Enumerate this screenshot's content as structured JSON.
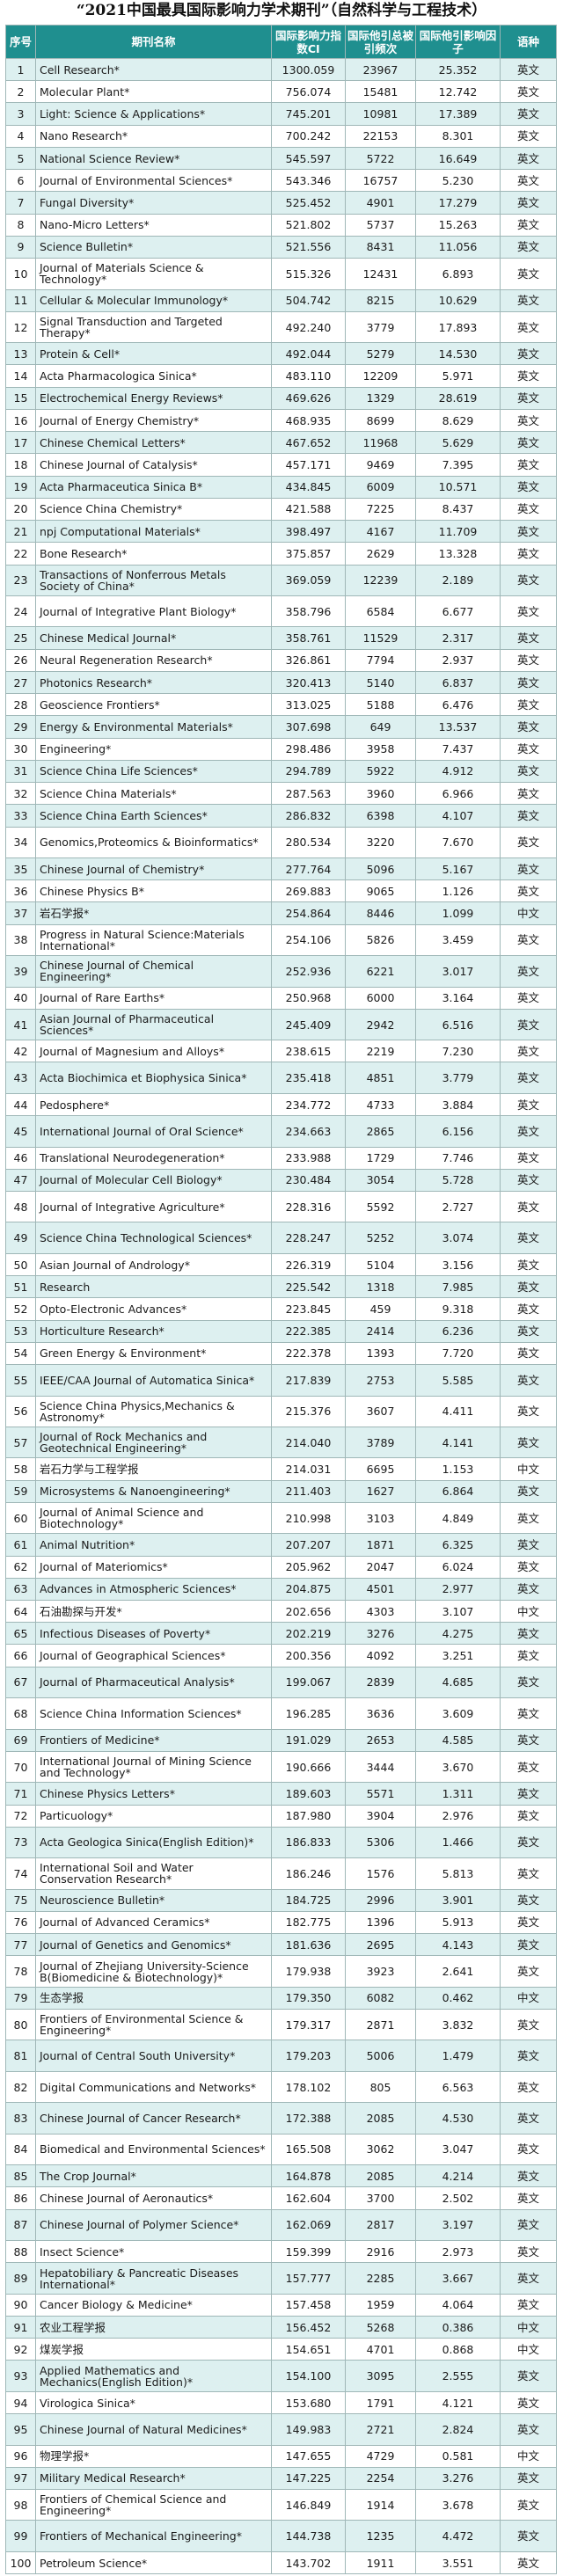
{
  "title": "“2021中国最具国际影响力学术期刊”（自然科学与工程技术）",
  "headers": [
    "序号",
    "期刊名称",
    "国际影响力指数CI",
    "国际他引总被引频次",
    "国际他引影响因子",
    "语种"
  ],
  "rows": [
    [
      "1",
      "Cell Research*",
      "1300.059",
      "23967",
      "25.352",
      "英文"
    ],
    [
      "2",
      "Molecular Plant*",
      "756.074",
      "15481",
      "12.742",
      "英文"
    ],
    [
      "3",
      "Light: Science & Applications*",
      "745.201",
      "10981",
      "17.389",
      "英文"
    ],
    [
      "4",
      "Nano Research*",
      "700.242",
      "22153",
      "8.301",
      "英文"
    ],
    [
      "5",
      "National Science Review*",
      "545.597",
      "5722",
      "16.649",
      "英文"
    ],
    [
      "6",
      "Journal of Environmental Sciences*",
      "543.346",
      "16757",
      "5.230",
      "英文"
    ],
    [
      "7",
      "Fungal Diversity*",
      "525.452",
      "4901",
      "17.279",
      "英文"
    ],
    [
      "8",
      "Nano-Micro Letters*",
      "521.802",
      "5737",
      "15.263",
      "英文"
    ],
    [
      "9",
      "Science Bulletin*",
      "521.556",
      "8431",
      "11.056",
      "英文"
    ],
    [
      "10",
      "Journal of Materials Science & Technology*",
      "515.326",
      "12431",
      "6.893",
      "英文"
    ],
    [
      "11",
      "Cellular & Molecular Immunology*",
      "504.742",
      "8215",
      "10.629",
      "英文"
    ],
    [
      "12",
      "Signal Transduction and Targeted Therapy*",
      "492.240",
      "3779",
      "17.893",
      "英文"
    ],
    [
      "13",
      "Protein & Cell*",
      "492.044",
      "5279",
      "14.530",
      "英文"
    ],
    [
      "14",
      "Acta Pharmacologica Sinica*",
      "483.110",
      "12209",
      "5.971",
      "英文"
    ],
    [
      "15",
      "Electrochemical Energy Reviews*",
      "469.626",
      "1329",
      "28.619",
      "英文"
    ],
    [
      "16",
      "Journal of Energy Chemistry*",
      "468.935",
      "8699",
      "8.629",
      "英文"
    ],
    [
      "17",
      "Chinese Chemical Letters*",
      "467.652",
      "11968",
      "5.629",
      "英文"
    ],
    [
      "18",
      "Chinese Journal of Catalysis*",
      "457.171",
      "9469",
      "7.395",
      "英文"
    ],
    [
      "19",
      "Acta Pharmaceutica Sinica B*",
      "434.845",
      "6009",
      "10.571",
      "英文"
    ],
    [
      "20",
      "Science China Chemistry*",
      "421.588",
      "7225",
      "8.437",
      "英文"
    ],
    [
      "21",
      "npj Computational Materials*",
      "398.497",
      "4167",
      "11.709",
      "英文"
    ],
    [
      "22",
      "Bone Research*",
      "375.857",
      "2629",
      "13.328",
      "英文"
    ],
    [
      "23",
      "Transactions of Nonferrous Metals Society of China*",
      "369.059",
      "12239",
      "2.189",
      "英文"
    ],
    [
      "24",
      "Journal of Integrative Plant Biology*",
      "358.796",
      "6584",
      "6.677",
      "英文"
    ],
    [
      "25",
      "Chinese Medical Journal*",
      "358.761",
      "11529",
      "2.317",
      "英文"
    ],
    [
      "26",
      "Neural Regeneration Research*",
      "326.861",
      "7794",
      "2.937",
      "英文"
    ],
    [
      "27",
      "Photonics Research*",
      "320.413",
      "5140",
      "6.837",
      "英文"
    ],
    [
      "28",
      "Geoscience Frontiers*",
      "313.025",
      "5188",
      "6.476",
      "英文"
    ],
    [
      "29",
      "Energy & Environmental Materials*",
      "307.698",
      "649",
      "13.537",
      "英文"
    ],
    [
      "30",
      "Engineering*",
      "298.486",
      "3958",
      "7.437",
      "英文"
    ],
    [
      "31",
      "Science China Life Sciences*",
      "294.789",
      "5922",
      "4.912",
      "英文"
    ],
    [
      "32",
      "Science China Materials*",
      "287.563",
      "3960",
      "6.966",
      "英文"
    ],
    [
      "33",
      "Science China Earth Sciences*",
      "286.832",
      "6398",
      "4.107",
      "英文"
    ],
    [
      "34",
      "Genomics,Proteomics & Bioinformatics*",
      "280.534",
      "3220",
      "7.670",
      "英文"
    ],
    [
      "35",
      "Chinese Journal of Chemistry*",
      "277.764",
      "5096",
      "5.167",
      "英文"
    ],
    [
      "36",
      "Chinese Physics B*",
      "269.883",
      "9065",
      "1.126",
      "英文"
    ],
    [
      "37",
      "岩石学报*",
      "254.864",
      "8446",
      "1.099",
      "中文"
    ],
    [
      "38",
      "Progress in Natural Science:Materials International*",
      "254.106",
      "5826",
      "3.459",
      "英文"
    ],
    [
      "39",
      "Chinese Journal of Chemical Engineering*",
      "252.936",
      "6221",
      "3.017",
      "英文"
    ],
    [
      "40",
      "Journal of Rare Earths*",
      "250.968",
      "6000",
      "3.164",
      "英文"
    ],
    [
      "41",
      "Asian Journal of Pharmaceutical Sciences*",
      "245.409",
      "2942",
      "6.516",
      "英文"
    ],
    [
      "42",
      "Journal of Magnesium and Alloys*",
      "238.615",
      "2219",
      "7.230",
      "英文"
    ],
    [
      "43",
      "Acta Biochimica et Biophysica Sinica*",
      "235.418",
      "4851",
      "3.779",
      "英文"
    ],
    [
      "44",
      "Pedosphere*",
      "234.772",
      "4733",
      "3.884",
      "英文"
    ],
    [
      "45",
      "International Journal of Oral Science*",
      "234.663",
      "2865",
      "6.156",
      "英文"
    ],
    [
      "46",
      "Translational Neurodegeneration*",
      "233.988",
      "1729",
      "7.746",
      "英文"
    ],
    [
      "47",
      "Journal of Molecular Cell Biology*",
      "230.484",
      "3054",
      "5.728",
      "英文"
    ],
    [
      "48",
      "Journal of Integrative Agriculture*",
      "228.316",
      "5592",
      "2.727",
      "英文"
    ],
    [
      "49",
      "Science China Technological Sciences*",
      "228.247",
      "5252",
      "3.074",
      "英文"
    ],
    [
      "50",
      "Asian Journal of Andrology*",
      "226.319",
      "5104",
      "3.156",
      "英文"
    ],
    [
      "51",
      "Research",
      "225.542",
      "1318",
      "7.985",
      "英文"
    ],
    [
      "52",
      "Opto-Electronic Advances*",
      "223.845",
      "459",
      "9.318",
      "英文"
    ],
    [
      "53",
      "Horticulture Research*",
      "222.385",
      "2414",
      "6.236",
      "英文"
    ],
    [
      "54",
      "Green Energy & Environment*",
      "222.378",
      "1393",
      "7.720",
      "英文"
    ],
    [
      "55",
      "IEEE/CAA Journal of Automatica Sinica*",
      "217.839",
      "2753",
      "5.585",
      "英文"
    ],
    [
      "56",
      "Science China Physics,Mechanics & Astronomy*",
      "215.376",
      "3607",
      "4.411",
      "英文"
    ],
    [
      "57",
      "Journal of Rock Mechanics and Geotechnical Engineering*",
      "214.040",
      "3789",
      "4.141",
      "英文"
    ],
    [
      "58",
      "岩石力学与工程学报",
      "214.031",
      "6695",
      "1.153",
      "中文"
    ],
    [
      "59",
      "Microsystems & Nanoengineering*",
      "211.403",
      "1627",
      "6.864",
      "英文"
    ],
    [
      "60",
      "Journal of Animal Science and Biotechnology*",
      "210.998",
      "3103",
      "4.849",
      "英文"
    ],
    [
      "61",
      "Animal Nutrition*",
      "207.207",
      "1871",
      "6.325",
      "英文"
    ],
    [
      "62",
      "Journal of Materiomics*",
      "205.962",
      "2047",
      "6.024",
      "英文"
    ],
    [
      "63",
      "Advances in Atmospheric Sciences*",
      "204.875",
      "4501",
      "2.977",
      "英文"
    ],
    [
      "64",
      "石油勘探与开发*",
      "202.656",
      "4303",
      "3.107",
      "中文"
    ],
    [
      "65",
      "Infectious Diseases of Poverty*",
      "202.219",
      "3276",
      "4.275",
      "英文"
    ],
    [
      "66",
      "Journal of Geographical Sciences*",
      "200.356",
      "4092",
      "3.251",
      "英文"
    ],
    [
      "67",
      "Journal of Pharmaceutical Analysis*",
      "199.067",
      "2839",
      "4.685",
      "英文"
    ],
    [
      "68",
      "Science China Information Sciences*",
      "196.285",
      "3636",
      "3.609",
      "英文"
    ],
    [
      "69",
      "Frontiers of Medicine*",
      "191.029",
      "2653",
      "4.585",
      "英文"
    ],
    [
      "70",
      "International Journal of Mining Science and Technology*",
      "190.666",
      "3444",
      "3.670",
      "英文"
    ],
    [
      "71",
      "Chinese Physics Letters*",
      "189.603",
      "5571",
      "1.311",
      "英文"
    ],
    [
      "72",
      "Particuology*",
      "187.980",
      "3904",
      "2.976",
      "英文"
    ],
    [
      "73",
      "Acta Geologica Sinica(English Edition)*",
      "186.833",
      "5306",
      "1.466",
      "英文"
    ],
    [
      "74",
      "International Soil and Water Conservation Research*",
      "186.246",
      "1576",
      "5.813",
      "英文"
    ],
    [
      "75",
      "Neuroscience Bulletin*",
      "184.725",
      "2996",
      "3.901",
      "英文"
    ],
    [
      "76",
      "Journal of Advanced Ceramics*",
      "182.775",
      "1396",
      "5.913",
      "英文"
    ],
    [
      "77",
      "Journal of Genetics and Genomics*",
      "181.636",
      "2695",
      "4.143",
      "英文"
    ],
    [
      "78",
      "Journal of Zhejiang University-Science B(Biomedicine & Biotechnology)*",
      "179.938",
      "3923",
      "2.641",
      "英文"
    ],
    [
      "79",
      "生态学报",
      "179.350",
      "6082",
      "0.462",
      "中文"
    ],
    [
      "80",
      "Frontiers of Environmental Science & Engineering*",
      "179.317",
      "2871",
      "3.832",
      "英文"
    ],
    [
      "81",
      "Journal of Central South University*",
      "179.203",
      "5006",
      "1.479",
      "英文"
    ],
    [
      "82",
      "Digital Communications and Networks*",
      "178.102",
      "805",
      "6.563",
      "英文"
    ],
    [
      "83",
      "Chinese Journal of Cancer Research*",
      "172.388",
      "2085",
      "4.530",
      "英文"
    ],
    [
      "84",
      "Biomedical and Environmental Sciences*",
      "165.508",
      "3062",
      "3.047",
      "英文"
    ],
    [
      "85",
      "The Crop Journal*",
      "164.878",
      "2085",
      "4.214",
      "英文"
    ],
    [
      "86",
      "Chinese Journal of Aeronautics*",
      "162.604",
      "3700",
      "2.502",
      "英文"
    ],
    [
      "87",
      "Chinese Journal of Polymer Science*",
      "162.069",
      "2817",
      "3.197",
      "英文"
    ],
    [
      "88",
      "Insect Science*",
      "159.399",
      "2916",
      "2.973",
      "英文"
    ],
    [
      "89",
      "Hepatobiliary & Pancreatic Diseases International*",
      "157.777",
      "2285",
      "3.667",
      "英文"
    ],
    [
      "90",
      "Cancer Biology & Medicine*",
      "157.458",
      "1959",
      "4.064",
      "英文"
    ],
    [
      "91",
      "农业工程学报",
      "156.452",
      "5268",
      "0.386",
      "中文"
    ],
    [
      "92",
      "煤炭学报",
      "154.651",
      "4701",
      "0.868",
      "中文"
    ],
    [
      "93",
      "Applied Mathematics and Mechanics(English Edition)*",
      "154.100",
      "3095",
      "2.555",
      "英文"
    ],
    [
      "94",
      "Virologica Sinica*",
      "153.680",
      "1791",
      "4.121",
      "英文"
    ],
    [
      "95",
      "Chinese Journal of Natural Medicines*",
      "149.983",
      "2721",
      "2.824",
      "英文"
    ],
    [
      "96",
      "物理学报*",
      "147.655",
      "4729",
      "0.581",
      "中文"
    ],
    [
      "97",
      "Military Medical Research*",
      "147.225",
      "2254",
      "3.276",
      "英文"
    ],
    [
      "98",
      "Frontiers of Chemical Science and Engineering*",
      "146.849",
      "1914",
      "3.678",
      "英文"
    ],
    [
      "99",
      "Frontiers of Mechanical Engineering*",
      "144.738",
      "1235",
      "4.472",
      "英文"
    ],
    [
      "100",
      "Petroleum Science*",
      "143.702",
      "1911",
      "3.551",
      "英文"
    ]
  ]
}
